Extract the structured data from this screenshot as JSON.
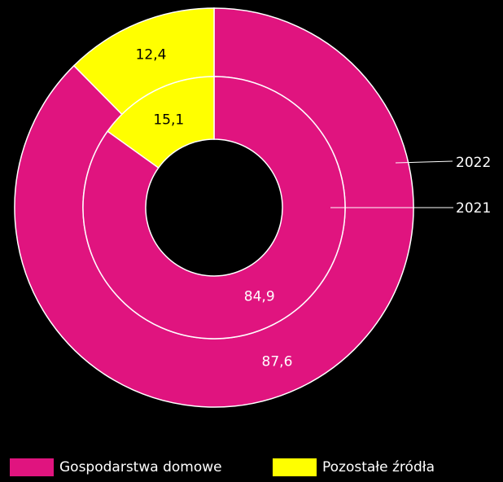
{
  "chart_data": {
    "type": "pie",
    "variant": "nested-donut",
    "categories": [
      "Gospodarstwa domowe",
      "Pozostałe źródła"
    ],
    "colors": [
      "#e0147f",
      "#ffff00"
    ],
    "series": [
      {
        "name": "2022",
        "ring": "outer",
        "values": [
          87.6,
          12.4
        ],
        "labels": [
          "87,6",
          "12,4"
        ]
      },
      {
        "name": "2021",
        "ring": "inner",
        "values": [
          84.9,
          15.1
        ],
        "labels": [
          "84,9",
          "15,1"
        ]
      }
    ],
    "label_colors": [
      "#ffffff",
      "#000000"
    ],
    "legend_position": "bottom"
  }
}
